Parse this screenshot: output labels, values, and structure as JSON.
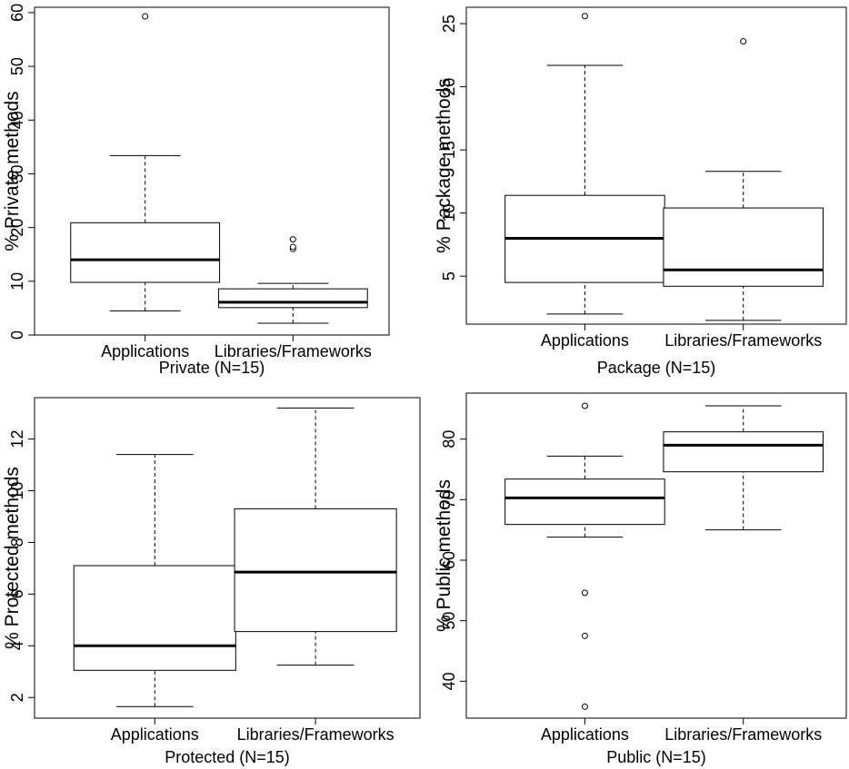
{
  "chart_data": [
    {
      "type": "boxplot",
      "id": "private",
      "title": "Private (N=15)",
      "ylabel": "% Private methods",
      "ylim": [
        0,
        61
      ],
      "ticks": [
        0,
        10,
        20,
        30,
        40,
        50,
        60
      ],
      "tick_labels": [
        "0",
        "10",
        "20",
        "30",
        "40",
        "50",
        "60"
      ],
      "categories": [
        "Applications",
        "Libraries/Frameworks"
      ],
      "boxes": [
        {
          "min": 4.5,
          "q1": 9.8,
          "median": 14.0,
          "q3": 20.9,
          "max": 33.4,
          "outliers": [
            59.3
          ]
        },
        {
          "min": 2.2,
          "q1": 5.1,
          "median": 6.1,
          "q3": 8.6,
          "max": 9.6,
          "outliers": [
            16.0,
            16.4,
            17.8
          ]
        }
      ]
    },
    {
      "type": "boxplot",
      "id": "package",
      "title": "Package (N=15)",
      "ylabel": "% Package methods",
      "ylim": [
        1.2,
        26.3
      ],
      "ticks": [
        5,
        10,
        15,
        20,
        25
      ],
      "tick_labels": [
        "5",
        "10",
        "15",
        "20",
        "25"
      ],
      "categories": [
        "Applications",
        "Libraries/Frameworks"
      ],
      "boxes": [
        {
          "min": 2.0,
          "q1": 4.5,
          "median": 8.0,
          "q3": 11.4,
          "max": 21.7,
          "outliers": [
            25.6
          ]
        },
        {
          "min": 1.5,
          "q1": 4.2,
          "median": 5.5,
          "q3": 10.4,
          "max": 13.3,
          "outliers": [
            23.6
          ]
        }
      ]
    },
    {
      "type": "boxplot",
      "id": "protected",
      "title": "Protected (N=15)",
      "ylabel": "% Protected methods",
      "ylim": [
        1.2,
        13.6
      ],
      "ticks": [
        2,
        4,
        6,
        8,
        10,
        12
      ],
      "tick_labels": [
        "2",
        "4",
        "6",
        "8",
        "10",
        "12"
      ],
      "categories": [
        "Applications",
        "Libraries/Frameworks"
      ],
      "boxes": [
        {
          "min": 1.65,
          "q1": 3.05,
          "median": 4.0,
          "q3": 7.1,
          "max": 11.4,
          "outliers": []
        },
        {
          "min": 3.25,
          "q1": 4.55,
          "median": 6.85,
          "q3": 9.3,
          "max": 13.2,
          "outliers": []
        }
      ]
    },
    {
      "type": "boxplot",
      "id": "public",
      "title": "Public (N=15)",
      "ylabel": "% Public methods",
      "ylim": [
        33.9,
        87.6
      ],
      "ticks": [
        40,
        50,
        60,
        70,
        80
      ],
      "tick_labels": [
        "40",
        "50",
        "60",
        "70",
        "80"
      ],
      "categories": [
        "Applications",
        "Libraries/Frameworks"
      ],
      "boxes": [
        {
          "min": 63.8,
          "q1": 65.9,
          "median": 70.3,
          "q3": 73.4,
          "max": 77.2,
          "outliers": [
            35.8,
            47.5,
            54.6,
            85.5
          ]
        },
        {
          "min": 65.0,
          "q1": 74.6,
          "median": 79.0,
          "q3": 81.2,
          "max": 85.5,
          "outliers": []
        }
      ]
    }
  ]
}
